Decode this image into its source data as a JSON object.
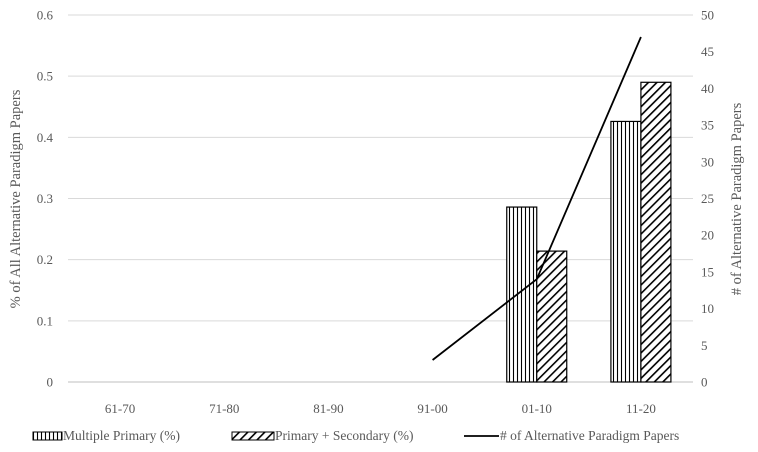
{
  "chart_data": {
    "type": "bar",
    "categories": [
      "61-70",
      "71-80",
      "81-90",
      "91-00",
      "01-10",
      "11-20"
    ],
    "series": [
      {
        "name": "Multiple Primary (%)",
        "kind": "bar",
        "axis": "left",
        "pattern": "vertical-lines",
        "values": [
          0,
          0,
          0,
          0,
          0.286,
          0.426
        ]
      },
      {
        "name": "Primary + Secondary (%)",
        "kind": "bar",
        "axis": "left",
        "pattern": "diagonal-lines",
        "values": [
          0,
          0,
          0,
          0,
          0.214,
          0.49
        ]
      },
      {
        "name": "# of Alternative Paradigm Papers",
        "kind": "line",
        "axis": "right",
        "values": [
          null,
          null,
          null,
          3,
          14,
          47
        ]
      }
    ],
    "ylabel": "% of All Alternative Paradigm Papers",
    "y2label": "# of Alternative Paradigm Papers",
    "ylim": [
      0,
      0.6
    ],
    "y2lim": [
      0,
      50
    ],
    "yticks": [
      "0",
      "0.1",
      "0.2",
      "0.3",
      "0.4",
      "0.5",
      "0.6"
    ],
    "y2ticks": [
      "0",
      "5",
      "10",
      "15",
      "20",
      "25",
      "30",
      "35",
      "40",
      "45",
      "50"
    ],
    "grid": true,
    "legend_position": "bottom",
    "colors": {
      "bar_stroke": "#000000",
      "line": "#000000",
      "grid": "#d9d9d9",
      "text": "#595959"
    }
  }
}
